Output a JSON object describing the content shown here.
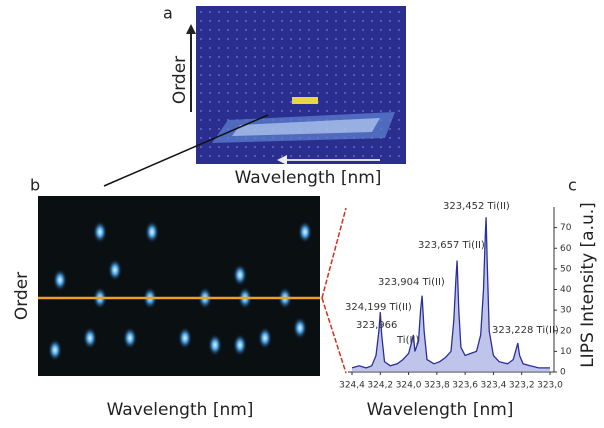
{
  "panels": {
    "a": {
      "label": "a",
      "y_label": "Order",
      "x_label": "Wavelength [nm]"
    },
    "b": {
      "label": "b",
      "y_label": "Order",
      "x_label": "Wavelength [nm]"
    }
  },
  "chart_data": {
    "type": "line",
    "label": "c",
    "x_label": "Wavelength [nm]",
    "y_label": "LIPS Intensity [a.u.]",
    "xlim": [
      324.4,
      323.0
    ],
    "xticks": [
      {
        "value": 324.4,
        "label": "324,4"
      },
      {
        "value": 324.2,
        "label": "324,2"
      },
      {
        "value": 324.0,
        "label": "324,0"
      },
      {
        "value": 323.8,
        "label": "323,8"
      },
      {
        "value": 323.6,
        "label": "323,6"
      },
      {
        "value": 323.4,
        "label": "323,4"
      },
      {
        "value": 323.2,
        "label": "323,2"
      },
      {
        "value": 323.0,
        "label": "323,0"
      }
    ],
    "ylim": [
      0,
      80
    ],
    "yticks": [
      0,
      10,
      20,
      30,
      40,
      50,
      60,
      70
    ],
    "color": "#2a2f9a",
    "x": [
      324.4,
      324.35,
      324.3,
      324.26,
      324.23,
      324.21,
      324.2,
      324.19,
      324.17,
      324.13,
      324.08,
      324.04,
      324.0,
      323.98,
      323.966,
      323.955,
      323.93,
      323.915,
      323.904,
      323.89,
      323.87,
      323.82,
      323.78,
      323.74,
      323.7,
      323.68,
      323.665,
      323.657,
      323.645,
      323.63,
      323.6,
      323.56,
      323.52,
      323.49,
      323.47,
      323.458,
      323.452,
      323.445,
      323.43,
      323.4,
      323.36,
      323.3,
      323.26,
      323.24,
      323.228,
      323.215,
      323.19,
      323.14,
      323.08,
      323.0
    ],
    "values": [
      2,
      3,
      2,
      3,
      8,
      20,
      29,
      18,
      5,
      3,
      4,
      6,
      9,
      14,
      18,
      10,
      15,
      30,
      37,
      20,
      6,
      4,
      5,
      7,
      10,
      25,
      45,
      54,
      30,
      12,
      8,
      9,
      10,
      18,
      40,
      65,
      75,
      55,
      20,
      8,
      5,
      4,
      6,
      11,
      14,
      8,
      4,
      3,
      2,
      2
    ],
    "annotations": [
      "324,199 Ti(II)",
      "323,966",
      "Ti(II)",
      "323,904 Ti(II)",
      "323,657 Ti(II)",
      "323,452 Ti(II)",
      "323,228 Ti(II)"
    ]
  }
}
